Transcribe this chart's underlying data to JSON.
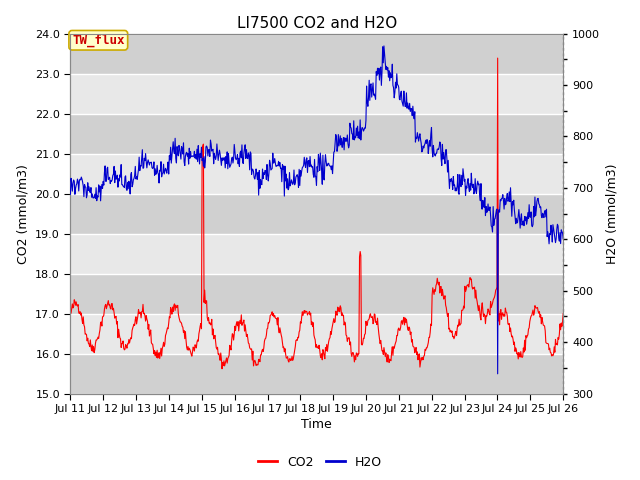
{
  "title": "LI7500 CO2 and H2O",
  "xlabel": "Time",
  "ylabel_left": "CO2 (mmol/m3)",
  "ylabel_right": "H2O (mmol/m3)",
  "annotation": "TW_flux",
  "co2_ylim": [
    15.0,
    24.0
  ],
  "h2o_ylim": [
    300,
    1000
  ],
  "co2_yticks": [
    15.0,
    16.0,
    17.0,
    18.0,
    19.0,
    20.0,
    21.0,
    22.0,
    23.0,
    24.0
  ],
  "xtick_labels": [
    "Jul 11",
    "Jul 12",
    "Jul 13",
    "Jul 14",
    "Jul 15",
    "Jul 16",
    "Jul 17",
    "Jul 18",
    "Jul 19",
    "Jul 20",
    "Jul 21",
    "Jul 22",
    "Jul 23",
    "Jul 24",
    "Jul 25",
    "Jul 26"
  ],
  "co2_color": "#FF0000",
  "h2o_color": "#0000CD",
  "background_color": "#FFFFFF",
  "plot_bg_color": "#E8E8E8",
  "stripe_color": "#D0D0D0",
  "grid_color": "#FFFFFF",
  "title_fontsize": 11,
  "axis_label_fontsize": 9,
  "tick_fontsize": 8,
  "annotation_fontsize": 9,
  "legend_fontsize": 9
}
